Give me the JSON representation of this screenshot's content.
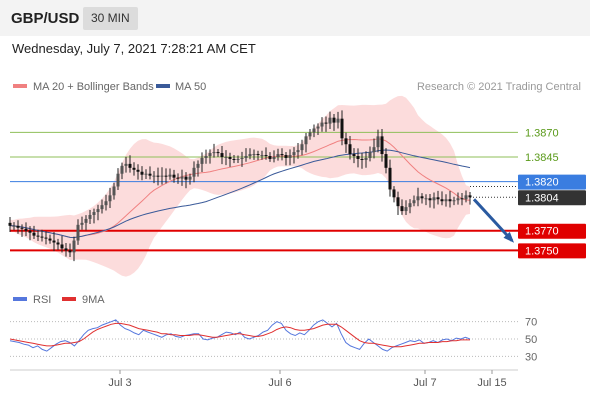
{
  "header": {
    "pair": "GBP/USD",
    "timeframe": "30 MIN",
    "datetime": "Wednesday, July 7, 2021 7:28:21 AM CET"
  },
  "legend": {
    "ma20": "MA 20 + Bollinger Bands",
    "ma50": "MA 50",
    "copyright": "Research © 2021 Trading Central"
  },
  "colors": {
    "ma20": "#f08080",
    "ma50": "#3a5a99",
    "candle": "#222222",
    "band": "#fbd0d0",
    "green_level": "#8fbf5a",
    "blue_level": "#3a7de0",
    "red_level": "#e00000",
    "rsi": "#5577dd",
    "rsi_ma": "#e03030"
  },
  "chart_data": [
    {
      "type": "candlestick",
      "ylim": [
        1.3728,
        1.3903
      ],
      "levels": [
        {
          "label": "1.3870",
          "value": 1.387,
          "kind": "resistance-green"
        },
        {
          "label": "1.3845",
          "value": 1.3845,
          "kind": "resistance-green"
        },
        {
          "label": "1.3820",
          "value": 1.382,
          "kind": "pivot-blue"
        },
        {
          "label": "1.3804",
          "value": 1.3804,
          "kind": "last-price"
        },
        {
          "label": "1.3770",
          "value": 1.377,
          "kind": "support-red"
        },
        {
          "label": "1.3750",
          "value": 1.375,
          "kind": "support-red"
        }
      ],
      "x_ticks": [
        "Jul 3",
        "Jul 6",
        "Jul 7",
        "Jul 15"
      ],
      "forecast_arrow": {
        "from": 1.3804,
        "to": 1.3762,
        "direction": "down"
      },
      "close": [
        1.3775,
        1.3775,
        1.3773,
        1.3772,
        1.377,
        1.3768,
        1.3765,
        1.3764,
        1.3763,
        1.3762,
        1.376,
        1.3758,
        1.3756,
        1.3752,
        1.375,
        1.3748,
        1.376,
        1.3776,
        1.3778,
        1.3782,
        1.3786,
        1.3789,
        1.3792,
        1.3796,
        1.38,
        1.3806,
        1.3815,
        1.3828,
        1.3836,
        1.3838,
        1.3834,
        1.3832,
        1.383,
        1.3827,
        1.3828,
        1.3826,
        1.3826,
        1.3825,
        1.3826,
        1.3825,
        1.3827,
        1.3824,
        1.3823,
        1.3825,
        1.3822,
        1.3825,
        1.3834,
        1.3838,
        1.3844,
        1.3846,
        1.3849,
        1.385,
        1.3849,
        1.3845,
        1.3845,
        1.3843,
        1.3842,
        1.3843,
        1.3844,
        1.3846,
        1.3848,
        1.3848,
        1.3847,
        1.3847,
        1.3846,
        1.3843,
        1.3845,
        1.3848,
        1.3847,
        1.3844,
        1.3847,
        1.385,
        1.3852,
        1.3858,
        1.3866,
        1.387,
        1.3874,
        1.3876,
        1.388,
        1.3879,
        1.3885,
        1.388,
        1.3884,
        1.3864,
        1.3858,
        1.3848,
        1.3846,
        1.3843,
        1.3842,
        1.3844,
        1.385,
        1.3855,
        1.3866,
        1.3848,
        1.3834,
        1.3812,
        1.3804,
        1.3795,
        1.379,
        1.3794,
        1.3798,
        1.3801,
        1.3805,
        1.3803,
        1.3803,
        1.3801,
        1.3804,
        1.3802,
        1.38,
        1.3802,
        1.38,
        1.3801,
        1.3803,
        1.3802,
        1.3806,
        1.3804
      ],
      "rsi": {
        "ylim": [
          20,
          80
        ],
        "ticks": [
          70,
          50,
          30
        ],
        "labels": {
          "rsi": "RSI",
          "ma": "9MA"
        },
        "rsi_values": [
          48,
          47,
          46,
          44,
          43,
          40,
          42,
          38,
          36,
          40,
          44,
          47,
          48,
          46,
          42,
          48,
          55,
          60,
          62,
          63,
          66,
          68,
          70,
          72,
          66,
          62,
          60,
          57,
          55,
          60,
          58,
          56,
          54,
          52,
          55,
          56,
          53,
          52,
          54,
          55,
          56,
          56,
          50,
          49,
          51,
          52,
          55,
          58,
          57,
          55,
          58,
          52,
          50,
          52,
          54,
          58,
          60,
          66,
          70,
          68,
          60,
          56,
          54,
          57,
          55,
          60,
          66,
          70,
          72,
          68,
          64,
          68,
          56,
          46,
          42,
          40,
          38,
          45,
          50,
          46,
          42,
          38,
          36,
          40,
          42,
          44,
          46,
          48,
          47,
          49,
          45,
          46,
          48,
          46,
          49,
          50,
          48,
          51,
          50,
          52,
          50
        ],
        "ma_values": [
          50,
          49,
          48,
          47,
          46,
          45,
          44,
          43,
          42,
          42,
          43,
          44,
          45,
          45,
          46,
          47,
          50,
          54,
          58,
          61,
          63,
          65,
          67,
          68,
          68,
          67,
          66,
          64,
          62,
          61,
          60,
          59,
          58,
          56,
          56,
          55,
          55,
          54,
          54,
          54,
          55,
          55,
          54,
          53,
          52,
          52,
          53,
          54,
          55,
          56,
          56,
          55,
          54,
          53,
          53,
          54,
          56,
          58,
          61,
          63,
          64,
          63,
          61,
          60,
          60,
          61,
          62,
          64,
          66,
          67,
          67,
          67,
          64,
          60,
          56,
          52,
          48,
          46,
          45,
          45,
          44,
          43,
          42,
          41,
          41,
          41,
          42,
          43,
          44,
          45,
          45,
          46,
          46,
          46,
          47,
          47,
          48,
          48,
          49,
          49,
          49
        ]
      }
    }
  ]
}
